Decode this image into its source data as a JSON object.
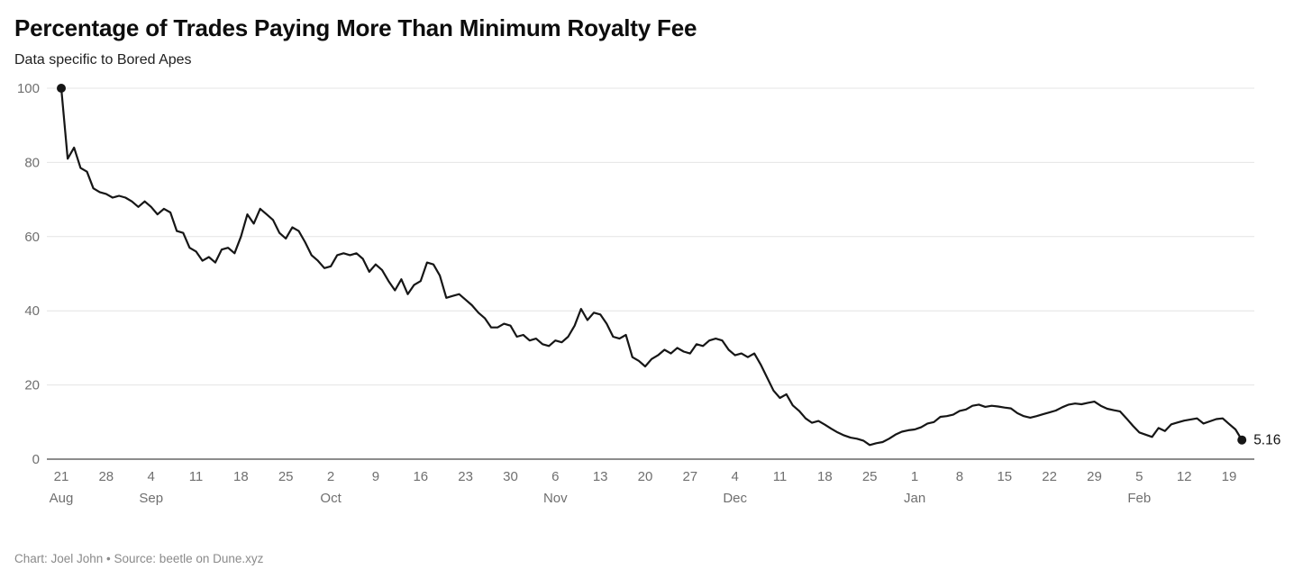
{
  "footer": {
    "credit": "Chart: Joel John • Source: beetle on Dune.xyz"
  },
  "chart_data": {
    "type": "line",
    "title": "Percentage of Trades Paying More Than Minimum Royalty Fee",
    "subtitle": "Data specific to Bored Apes",
    "ylabel": "",
    "xlabel": "",
    "ylim": [
      0,
      100
    ],
    "y_ticks": [
      0,
      20,
      40,
      60,
      80,
      100
    ],
    "grid": true,
    "line_color": "#161616",
    "grid_color": "#e4e4e4",
    "baseline_color": "#1a1a1a",
    "tick_label_color": "#6f6f6f",
    "end_label": "5.16",
    "x_unit": "days",
    "x_ticks": [
      {
        "label": "21",
        "day_index": 0,
        "month": "Aug"
      },
      {
        "label": "28",
        "day_index": 7,
        "month": ""
      },
      {
        "label": "4",
        "day_index": 14,
        "month": "Sep"
      },
      {
        "label": "11",
        "day_index": 21,
        "month": ""
      },
      {
        "label": "18",
        "day_index": 28,
        "month": ""
      },
      {
        "label": "25",
        "day_index": 35,
        "month": ""
      },
      {
        "label": "2",
        "day_index": 42,
        "month": "Oct"
      },
      {
        "label": "9",
        "day_index": 49,
        "month": ""
      },
      {
        "label": "16",
        "day_index": 56,
        "month": ""
      },
      {
        "label": "23",
        "day_index": 63,
        "month": ""
      },
      {
        "label": "30",
        "day_index": 70,
        "month": ""
      },
      {
        "label": "6",
        "day_index": 77,
        "month": "Nov"
      },
      {
        "label": "13",
        "day_index": 84,
        "month": ""
      },
      {
        "label": "20",
        "day_index": 91,
        "month": ""
      },
      {
        "label": "27",
        "day_index": 98,
        "month": ""
      },
      {
        "label": "4",
        "day_index": 105,
        "month": "Dec"
      },
      {
        "label": "11",
        "day_index": 112,
        "month": ""
      },
      {
        "label": "18",
        "day_index": 119,
        "month": ""
      },
      {
        "label": "25",
        "day_index": 126,
        "month": ""
      },
      {
        "label": "1",
        "day_index": 133,
        "month": "Jan"
      },
      {
        "label": "8",
        "day_index": 140,
        "month": ""
      },
      {
        "label": "15",
        "day_index": 147,
        "month": ""
      },
      {
        "label": "22",
        "day_index": 154,
        "month": ""
      },
      {
        "label": "29",
        "day_index": 161,
        "month": ""
      },
      {
        "label": "5",
        "day_index": 168,
        "month": "Feb"
      },
      {
        "label": "12",
        "day_index": 175,
        "month": ""
      },
      {
        "label": "19",
        "day_index": 182,
        "month": ""
      }
    ],
    "values": [
      100,
      81,
      84,
      78.5,
      77.5,
      73,
      72,
      71.5,
      70.5,
      71,
      70.5,
      69.5,
      68,
      69.5,
      68,
      66,
      67.5,
      66.5,
      61.5,
      61,
      57,
      56,
      53.5,
      54.5,
      53,
      56.5,
      57,
      55.5,
      60,
      66,
      63.5,
      67.5,
      66,
      64.5,
      61,
      59.5,
      62.5,
      61.5,
      58.5,
      55,
      53.5,
      51.5,
      52,
      55,
      55.5,
      55,
      55.5,
      54,
      50.5,
      52.5,
      51,
      48,
      45.5,
      48.5,
      44.5,
      47,
      48,
      53,
      52.5,
      49.5,
      43.5,
      44,
      44.5,
      43,
      41.5,
      39.5,
      38,
      35.5,
      35.5,
      36.5,
      36,
      33,
      33.5,
      32,
      32.5,
      31,
      30.5,
      32,
      31.5,
      33,
      36,
      40.5,
      37.5,
      39.5,
      39,
      36.5,
      33,
      32.5,
      33.5,
      27.5,
      26.5,
      25,
      27,
      28,
      29.5,
      28.5,
      30,
      29,
      28.5,
      31,
      30.5,
      32,
      32.5,
      32,
      29.5,
      28,
      28.5,
      27.5,
      28.5,
      25.5,
      22,
      18.5,
      16.5,
      17.5,
      14.5,
      13,
      11,
      9.8,
      10.3,
      9.3,
      8.2,
      7.2,
      6.4,
      5.8,
      5.5,
      5,
      3.8,
      4.3,
      4.6,
      5.5,
      6.6,
      7.4,
      7.8,
      8,
      8.6,
      9.6,
      10,
      11.4,
      11.6,
      12,
      13,
      13.4,
      14.4,
      14.7,
      14.1,
      14.4,
      14.2,
      13.9,
      13.7,
      12.4,
      11.6,
      11.2,
      11.6,
      12.1,
      12.6,
      13.1,
      14,
      14.7,
      15,
      14.8,
      15.2,
      15.5,
      14.4,
      13.6,
      13.2,
      12.9,
      11,
      9,
      7.2,
      6.6,
      6,
      8.4,
      7.6,
      9.4,
      9.9,
      10.4,
      10.7,
      11,
      9.6,
      10.2,
      10.8,
      11,
      9.5,
      8,
      5.16
    ]
  }
}
